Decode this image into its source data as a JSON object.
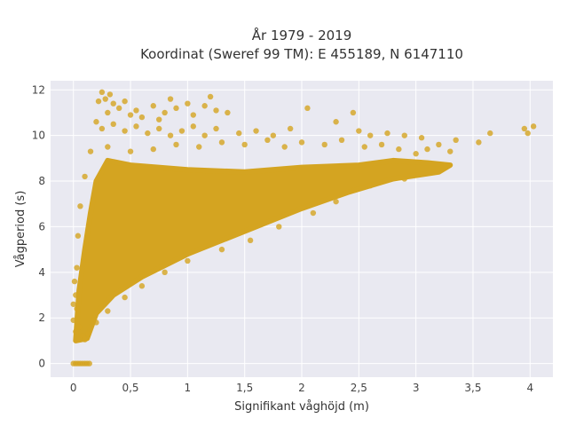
{
  "chart_data": {
    "type": "scatter",
    "title": "År 1979 - 2019",
    "subtitle": "Koordinat (Sweref 99 TM): E 455189, N 6147110",
    "xlabel": "Signifikant våghöjd (m)",
    "ylabel": "Vågperiod (s)",
    "xlim": [
      -0.2,
      4.2
    ],
    "ylim": [
      -0.6,
      12.4
    ],
    "x_ticks": [
      0,
      0.5,
      1,
      1.5,
      2,
      2.5,
      3,
      3.5,
      4
    ],
    "x_tick_labels": [
      "0",
      "0,5",
      "1",
      "1,5",
      "2",
      "2,5",
      "3",
      "3,5",
      "4"
    ],
    "y_ticks": [
      0,
      2,
      4,
      6,
      8,
      10,
      12
    ],
    "y_tick_labels": [
      "0",
      "2",
      "4",
      "6",
      "8",
      "10",
      "12"
    ],
    "grid": true,
    "legend": "none",
    "marker_color": "#D4A421",
    "plot_background": "#E9E9F1",
    "density_region": [
      [
        0.02,
        1.0
      ],
      [
        0.05,
        3.2
      ],
      [
        0.1,
        5.0
      ],
      [
        0.15,
        6.6
      ],
      [
        0.2,
        8.0
      ],
      [
        0.3,
        8.9
      ],
      [
        0.5,
        8.7
      ],
      [
        1.0,
        8.5
      ],
      [
        1.5,
        8.4
      ],
      [
        2.0,
        8.6
      ],
      [
        2.5,
        8.7
      ],
      [
        2.8,
        8.9
      ],
      [
        3.1,
        8.8
      ],
      [
        3.3,
        8.7
      ],
      [
        3.2,
        8.4
      ],
      [
        2.8,
        8.1
      ],
      [
        2.4,
        7.5
      ],
      [
        2.0,
        6.8
      ],
      [
        1.5,
        5.8
      ],
      [
        1.0,
        4.8
      ],
      [
        0.6,
        3.8
      ],
      [
        0.35,
        3.0
      ],
      [
        0.2,
        2.2
      ],
      [
        0.12,
        1.1
      ]
    ],
    "series": [
      {
        "values": [
          {
            "x": 0.25,
            "y": 11.9
          },
          {
            "x": 0.28,
            "y": 11.6
          },
          {
            "x": 0.22,
            "y": 11.5
          },
          {
            "x": 0.32,
            "y": 11.8
          },
          {
            "x": 0.35,
            "y": 11.4
          },
          {
            "x": 0.4,
            "y": 11.2
          },
          {
            "x": 0.3,
            "y": 11.0
          },
          {
            "x": 0.45,
            "y": 11.5
          },
          {
            "x": 0.5,
            "y": 10.9
          },
          {
            "x": 0.55,
            "y": 11.1
          },
          {
            "x": 0.6,
            "y": 10.8
          },
          {
            "x": 0.7,
            "y": 11.3
          },
          {
            "x": 0.75,
            "y": 10.7
          },
          {
            "x": 0.8,
            "y": 11.0
          },
          {
            "x": 0.85,
            "y": 11.6
          },
          {
            "x": 0.9,
            "y": 11.2
          },
          {
            "x": 1.0,
            "y": 11.4
          },
          {
            "x": 1.05,
            "y": 10.9
          },
          {
            "x": 1.15,
            "y": 11.3
          },
          {
            "x": 1.2,
            "y": 11.7
          },
          {
            "x": 1.25,
            "y": 11.1
          },
          {
            "x": 1.35,
            "y": 11.0
          },
          {
            "x": 0.2,
            "y": 10.6
          },
          {
            "x": 0.25,
            "y": 10.3
          },
          {
            "x": 0.35,
            "y": 10.5
          },
          {
            "x": 0.45,
            "y": 10.2
          },
          {
            "x": 0.55,
            "y": 10.4
          },
          {
            "x": 0.65,
            "y": 10.1
          },
          {
            "x": 0.75,
            "y": 10.3
          },
          {
            "x": 0.85,
            "y": 10.0
          },
          {
            "x": 0.95,
            "y": 10.2
          },
          {
            "x": 1.05,
            "y": 10.4
          },
          {
            "x": 1.15,
            "y": 10.0
          },
          {
            "x": 1.25,
            "y": 10.3
          },
          {
            "x": 1.45,
            "y": 10.1
          },
          {
            "x": 1.6,
            "y": 10.2
          },
          {
            "x": 1.75,
            "y": 10.0
          },
          {
            "x": 1.9,
            "y": 10.3
          },
          {
            "x": 2.05,
            "y": 11.2
          },
          {
            "x": 2.3,
            "y": 10.6
          },
          {
            "x": 2.45,
            "y": 11.0
          },
          {
            "x": 2.5,
            "y": 10.2
          },
          {
            "x": 2.6,
            "y": 10.0
          },
          {
            "x": 2.75,
            "y": 10.1
          },
          {
            "x": 2.9,
            "y": 10.0
          },
          {
            "x": 3.05,
            "y": 9.9
          },
          {
            "x": 3.2,
            "y": 9.6
          },
          {
            "x": 3.35,
            "y": 9.8
          },
          {
            "x": 3.55,
            "y": 9.7
          },
          {
            "x": 3.65,
            "y": 10.1
          },
          {
            "x": 3.95,
            "y": 10.3
          },
          {
            "x": 3.98,
            "y": 10.1
          },
          {
            "x": 4.03,
            "y": 10.4
          },
          {
            "x": 3.1,
            "y": 9.4
          },
          {
            "x": 3.3,
            "y": 9.3
          },
          {
            "x": 3.0,
            "y": 9.2
          },
          {
            "x": 2.85,
            "y": 9.4
          },
          {
            "x": 2.7,
            "y": 9.6
          },
          {
            "x": 2.55,
            "y": 9.5
          },
          {
            "x": 2.35,
            "y": 9.8
          },
          {
            "x": 2.2,
            "y": 9.6
          },
          {
            "x": 2.0,
            "y": 9.7
          },
          {
            "x": 1.85,
            "y": 9.5
          },
          {
            "x": 1.7,
            "y": 9.8
          },
          {
            "x": 1.5,
            "y": 9.6
          },
          {
            "x": 1.3,
            "y": 9.7
          },
          {
            "x": 1.1,
            "y": 9.5
          },
          {
            "x": 0.9,
            "y": 9.6
          },
          {
            "x": 0.7,
            "y": 9.4
          },
          {
            "x": 0.5,
            "y": 9.3
          },
          {
            "x": 0.3,
            "y": 9.5
          },
          {
            "x": 0.15,
            "y": 9.3
          },
          {
            "x": 0.1,
            "y": 8.2
          },
          {
            "x": 0.06,
            "y": 6.9
          },
          {
            "x": 0.04,
            "y": 5.6
          },
          {
            "x": 0.03,
            "y": 4.2
          },
          {
            "x": 0.02,
            "y": 3.0
          },
          {
            "x": 0.03,
            "y": 2.4
          },
          {
            "x": 0.05,
            "y": 1.6
          },
          {
            "x": 0.08,
            "y": 1.2
          },
          {
            "x": 0.1,
            "y": 1.05
          },
          {
            "x": 0.13,
            "y": 1.3
          },
          {
            "x": 0.02,
            "y": 1.4
          },
          {
            "x": 0.0,
            "y": 1.9
          },
          {
            "x": 0.0,
            "y": 2.6
          },
          {
            "x": 0.01,
            "y": 3.6
          },
          {
            "x": 2.9,
            "y": 8.1
          },
          {
            "x": 2.6,
            "y": 7.8
          },
          {
            "x": 2.3,
            "y": 7.1
          },
          {
            "x": 2.1,
            "y": 6.6
          },
          {
            "x": 1.8,
            "y": 6.0
          },
          {
            "x": 1.55,
            "y": 5.4
          },
          {
            "x": 1.3,
            "y": 5.0
          },
          {
            "x": 1.0,
            "y": 4.5
          },
          {
            "x": 0.8,
            "y": 4.0
          },
          {
            "x": 0.6,
            "y": 3.4
          },
          {
            "x": 0.45,
            "y": 2.9
          },
          {
            "x": 0.3,
            "y": 2.3
          },
          {
            "x": 0.2,
            "y": 1.8
          },
          {
            "x": 0.0,
            "y": 0
          },
          {
            "x": 0.02,
            "y": 0
          },
          {
            "x": 0.04,
            "y": 0
          },
          {
            "x": 0.06,
            "y": 0
          },
          {
            "x": 0.08,
            "y": 0
          },
          {
            "x": 0.1,
            "y": 0
          },
          {
            "x": 0.12,
            "y": 0
          },
          {
            "x": 0.14,
            "y": 0
          }
        ]
      }
    ]
  }
}
